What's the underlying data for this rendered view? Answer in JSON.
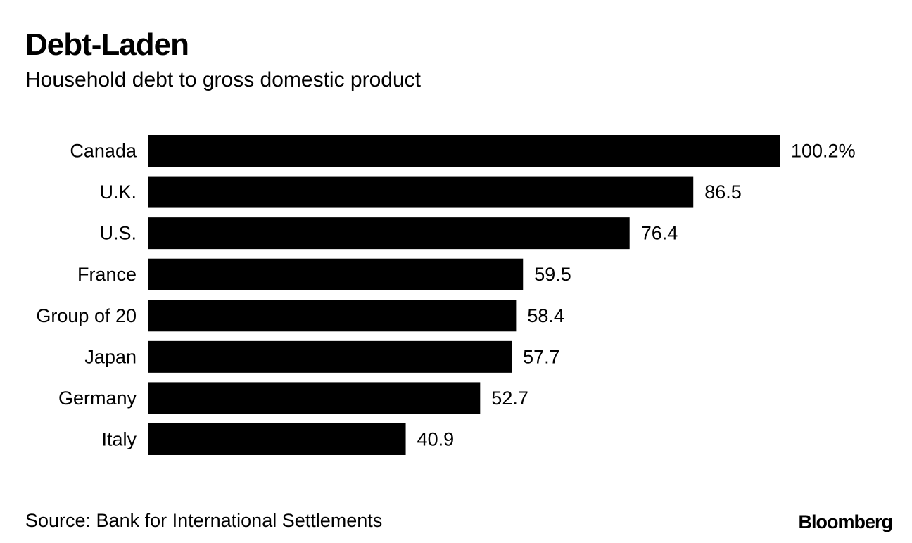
{
  "chart_data": {
    "type": "bar",
    "orientation": "horizontal",
    "title": "Debt-Laden",
    "subtitle": "Household debt to gross domestic product",
    "categories": [
      "Canada",
      "U.K.",
      "U.S.",
      "France",
      "Group of 20",
      "Japan",
      "Germany",
      "Italy"
    ],
    "values": [
      100.2,
      86.5,
      76.4,
      59.5,
      58.4,
      57.7,
      52.7,
      40.9
    ],
    "value_labels": [
      "100.2%",
      "86.5",
      "76.4",
      "59.5",
      "58.4",
      "57.7",
      "52.7",
      "40.9"
    ],
    "unit": "%",
    "xlim": [
      0,
      100.2
    ],
    "xlabel": "",
    "ylabel": "",
    "grid": false,
    "bar_color": "#000000"
  },
  "footer": {
    "source": "Source: Bank for International Settlements",
    "brand": "Bloomberg"
  }
}
